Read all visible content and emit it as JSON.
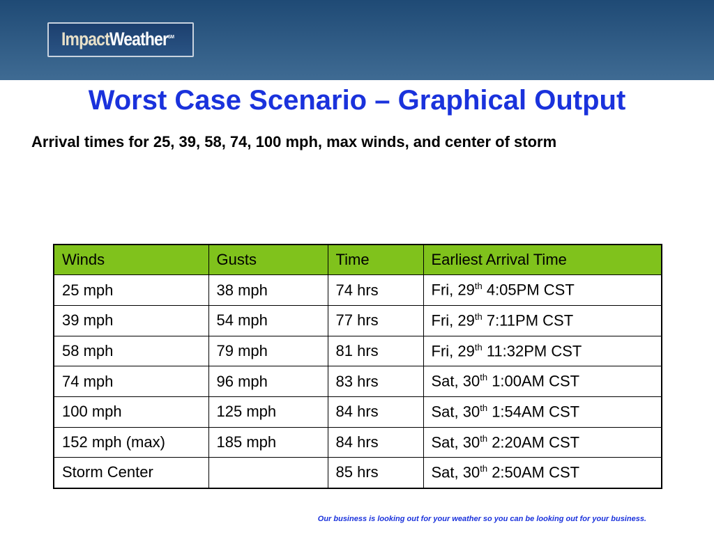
{
  "header": {
    "logo": {
      "part1": "Impact",
      "part2": "Weather",
      "mark": "SM"
    }
  },
  "title": "Worst Case Scenario – Graphical Output",
  "subtitle": "Arrival times for 25, 39, 58, 74, 100 mph, max winds, and center of storm",
  "table": {
    "columns": [
      "Winds",
      "Gusts",
      "Time",
      "Earliest Arrival Time"
    ],
    "rows": [
      [
        "25 mph",
        "38 mph",
        "74 hrs",
        {
          "day": "Fri, 29",
          "sup": "th",
          "time": "4:05PM CST"
        }
      ],
      [
        "39 mph",
        "54 mph",
        "77 hrs",
        {
          "day": "Fri, 29",
          "sup": "th",
          "time": "7:11PM CST"
        }
      ],
      [
        "58 mph",
        "79 mph",
        "81 hrs",
        {
          "day": "Fri, 29",
          "sup": "th",
          "time": "11:32PM CST"
        }
      ],
      [
        "74 mph",
        "96 mph",
        "83 hrs",
        {
          "day": "Sat, 30",
          "sup": "th",
          "time": "1:00AM CST"
        }
      ],
      [
        "100 mph",
        "125 mph",
        "84 hrs",
        {
          "day": "Sat, 30",
          "sup": "th",
          "time": "1:54AM CST"
        }
      ],
      [
        "152 mph (max)",
        "185 mph",
        "84 hrs",
        {
          "day": "Sat, 30",
          "sup": "th",
          "time": "2:20AM CST"
        }
      ],
      [
        "Storm Center",
        null,
        "85 hrs",
        {
          "day": "Sat, 30",
          "sup": "th",
          "time": "2:50AM CST"
        }
      ]
    ]
  },
  "footer": "Our business is looking out for your weather so you can be looking out for your business."
}
